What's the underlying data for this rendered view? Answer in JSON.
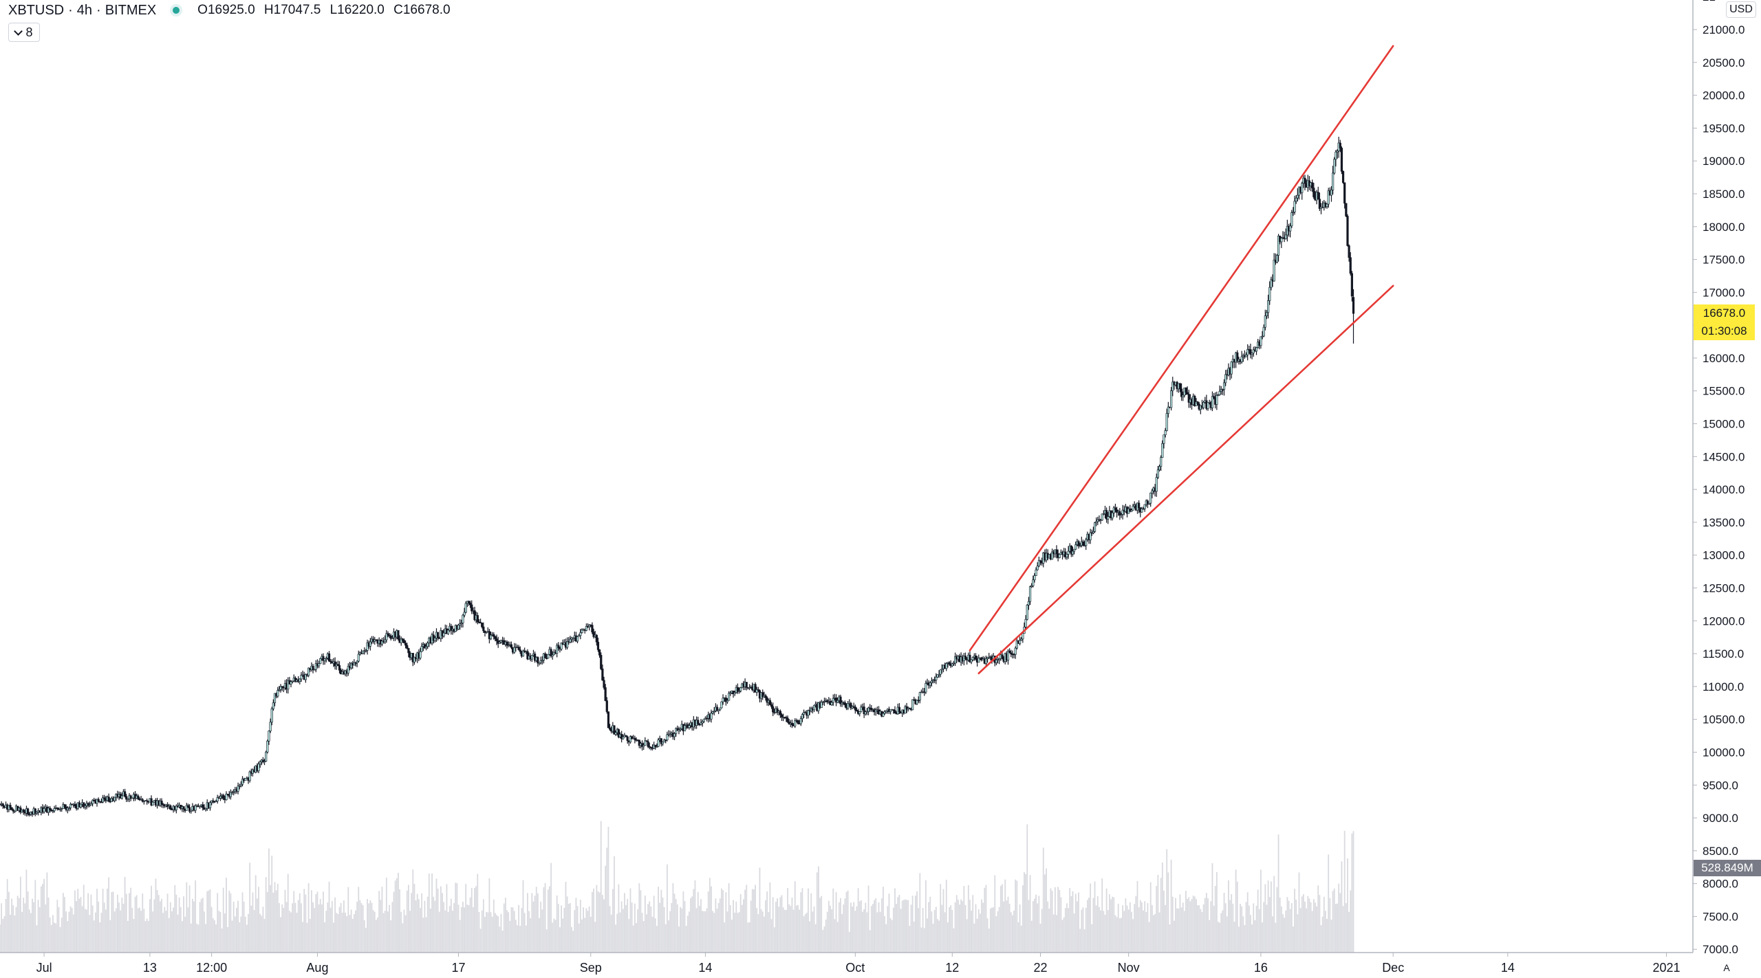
{
  "legend": {
    "symbol": "XBTUSD",
    "interval": "4h",
    "exchange": "BITMEX",
    "open": "O16925.0",
    "high": "H17047.5",
    "low": "L16220.0",
    "close": "C16678.0"
  },
  "indicators_toggle_count": "8",
  "currency_button": "USD",
  "last_price_label": "16678.0",
  "countdown_label": "01:30:08",
  "volume_label": "528.849M",
  "auto_scale_button": "A",
  "colors": {
    "candle": "#131722",
    "candle_body_up": "#b2dfdb",
    "candle_body_down": "#131722",
    "trendline": "#e53935",
    "volume": "#d9dadf",
    "last_price_bg": "#ffeb3b",
    "volume_tag_bg": "#787b86"
  },
  "chart_data": {
    "type": "candlestick",
    "interval": "4h",
    "y_axis": {
      "ylim": [
        6950,
        21450
      ],
      "ticks": [
        "7000.0",
        "7500.0",
        "8000.0",
        "8500.0",
        "9000.0",
        "9500.0",
        "10000.0",
        "10500.0",
        "11000.0",
        "11500.0",
        "12000.0",
        "12500.0",
        "13000.0",
        "13500.0",
        "14000.0",
        "14500.0",
        "15000.0",
        "15500.0",
        "16000.0",
        "16500.0",
        "17000.0",
        "17500.0",
        "18000.0",
        "18500.0",
        "19000.0",
        "19500.0",
        "20000.0",
        "20500.0",
        "21000.0",
        "21"
      ]
    },
    "x_axis": {
      "xlim": [
        "2020-06-26",
        "2021-01-04"
      ],
      "ticks": [
        {
          "label": "Jul",
          "date": "2020-07-01"
        },
        {
          "label": "13",
          "date": "2020-07-13"
        },
        {
          "label": "12:00",
          "date": "2020-07-20"
        },
        {
          "label": "Aug",
          "date": "2020-08-01"
        },
        {
          "label": "17",
          "date": "2020-08-17"
        },
        {
          "label": "Sep",
          "date": "2020-09-01"
        },
        {
          "label": "14",
          "date": "2020-09-14"
        },
        {
          "label": "Oct",
          "date": "2020-10-01"
        },
        {
          "label": "12",
          "date": "2020-10-12"
        },
        {
          "label": "22",
          "date": "2020-10-22"
        },
        {
          "label": "Nov",
          "date": "2020-11-01"
        },
        {
          "label": "16",
          "date": "2020-11-16"
        },
        {
          "label": "Dec",
          "date": "2020-12-01"
        },
        {
          "label": "14",
          "date": "2020-12-14"
        },
        {
          "label": "2021",
          "date": "2021-01-01"
        }
      ]
    },
    "price_path": [
      [
        "2020-06-26",
        9200
      ],
      [
        "2020-06-29",
        9100
      ],
      [
        "2020-07-02",
        9150
      ],
      [
        "2020-07-06",
        9200
      ],
      [
        "2020-07-10",
        9350
      ],
      [
        "2020-07-13",
        9250
      ],
      [
        "2020-07-16",
        9150
      ],
      [
        "2020-07-19",
        9150
      ],
      [
        "2020-07-22",
        9350
      ],
      [
        "2020-07-24",
        9600
      ],
      [
        "2020-07-26",
        9900
      ],
      [
        "2020-07-27",
        10800
      ],
      [
        "2020-07-28",
        11000
      ],
      [
        "2020-07-30",
        11100
      ],
      [
        "2020-08-02",
        11500
      ],
      [
        "2020-08-04",
        11200
      ],
      [
        "2020-08-07",
        11650
      ],
      [
        "2020-08-10",
        11800
      ],
      [
        "2020-08-12",
        11400
      ],
      [
        "2020-08-14",
        11750
      ],
      [
        "2020-08-17",
        11900
      ],
      [
        "2020-08-18",
        12250
      ],
      [
        "2020-08-20",
        11800
      ],
      [
        "2020-08-23",
        11600
      ],
      [
        "2020-08-26",
        11400
      ],
      [
        "2020-08-30",
        11700
      ],
      [
        "2020-09-01",
        11950
      ],
      [
        "2020-09-02",
        11500
      ],
      [
        "2020-09-03",
        10400
      ],
      [
        "2020-09-05",
        10200
      ],
      [
        "2020-09-08",
        10100
      ],
      [
        "2020-09-11",
        10350
      ],
      [
        "2020-09-14",
        10500
      ],
      [
        "2020-09-17",
        10900
      ],
      [
        "2020-09-19",
        11050
      ],
      [
        "2020-09-22",
        10600
      ],
      [
        "2020-09-24",
        10400
      ],
      [
        "2020-09-26",
        10650
      ],
      [
        "2020-09-29",
        10800
      ],
      [
        "2020-10-01",
        10650
      ],
      [
        "2020-10-04",
        10600
      ],
      [
        "2020-10-07",
        10650
      ],
      [
        "2020-10-09",
        11000
      ],
      [
        "2020-10-11",
        11300
      ],
      [
        "2020-10-13",
        11450
      ],
      [
        "2020-10-16",
        11400
      ],
      [
        "2020-10-18",
        11450
      ],
      [
        "2020-10-19",
        11550
      ],
      [
        "2020-10-20",
        11800
      ],
      [
        "2020-10-21",
        12600
      ],
      [
        "2020-10-22",
        12950
      ],
      [
        "2020-10-25",
        13050
      ],
      [
        "2020-10-27",
        13200
      ],
      [
        "2020-10-29",
        13600
      ],
      [
        "2020-11-01",
        13700
      ],
      [
        "2020-11-03",
        13750
      ],
      [
        "2020-11-04",
        14000
      ],
      [
        "2020-11-05",
        14800
      ],
      [
        "2020-11-06",
        15600
      ],
      [
        "2020-11-08",
        15400
      ],
      [
        "2020-11-09",
        15250
      ],
      [
        "2020-11-11",
        15350
      ],
      [
        "2020-11-13",
        16000
      ],
      [
        "2020-11-15",
        16100
      ],
      [
        "2020-11-16",
        16300
      ],
      [
        "2020-11-17",
        17000
      ],
      [
        "2020-11-18",
        17800
      ],
      [
        "2020-11-19",
        17900
      ],
      [
        "2020-11-20",
        18500
      ],
      [
        "2020-11-21",
        18750
      ],
      [
        "2020-11-22",
        18500
      ],
      [
        "2020-11-23",
        18300
      ],
      [
        "2020-11-24",
        18600
      ],
      [
        "2020-11-24T12:00",
        19150
      ],
      [
        "2020-11-25",
        19200
      ],
      [
        "2020-11-26",
        17500
      ],
      [
        "2020-11-26T12:00",
        16678
      ]
    ],
    "trendlines": [
      {
        "from": [
          "2020-10-14",
          11550
        ],
        "to": [
          "2020-12-01",
          20750
        ]
      },
      {
        "from": [
          "2020-10-15",
          11200
        ],
        "to": [
          "2020-12-01",
          17100
        ]
      }
    ],
    "last": {
      "open": 16925.0,
      "high": 17047.5,
      "low": 16220.0,
      "close": 16678.0
    },
    "volume_last": "528.849M"
  }
}
